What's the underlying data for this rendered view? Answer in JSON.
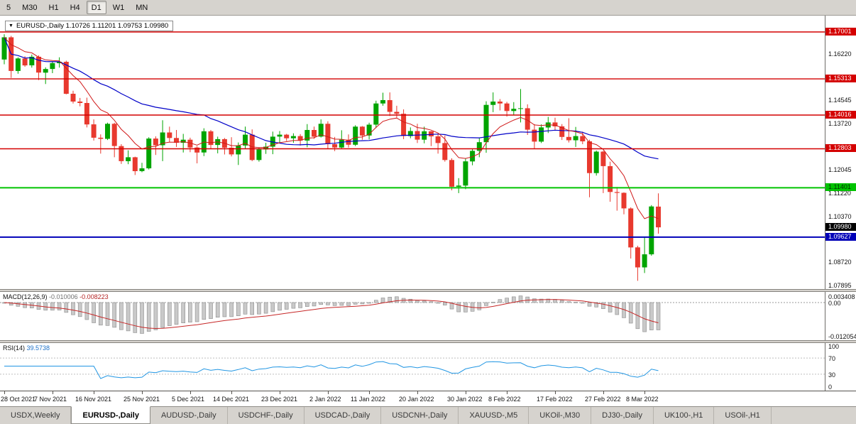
{
  "toolbar": {
    "timeframes": [
      {
        "label": "5",
        "active": false
      },
      {
        "label": "M30",
        "active": false
      },
      {
        "label": "H1",
        "active": false
      },
      {
        "label": "H4",
        "active": false
      },
      {
        "label": "D1",
        "active": true
      },
      {
        "label": "W1",
        "active": false
      },
      {
        "label": "MN",
        "active": false
      }
    ]
  },
  "chart": {
    "title": "EURUSD-,Daily 1.10726 1.11201 1.09753 1.09980",
    "price_lines": [
      {
        "price": 1.17001,
        "label": "1.17001",
        "color": "#d40000",
        "text_color": "#ffffff",
        "width": 1.4
      },
      {
        "price": 1.15313,
        "label": "1.15313",
        "color": "#d40000",
        "text_color": "#ffffff",
        "width": 1.4
      },
      {
        "price": 1.14016,
        "label": "1.14016",
        "color": "#d40000",
        "text_color": "#ffffff",
        "width": 1.4
      },
      {
        "price": 1.12803,
        "label": "1.12803",
        "color": "#d40000",
        "text_color": "#ffffff",
        "width": 1.4
      },
      {
        "price": 1.11401,
        "label": "1.11401",
        "color": "#00c300",
        "text_color": "#003300",
        "width": 2
      },
      {
        "price": 1.09627,
        "label": "1.09627",
        "color": "#0000b8",
        "text_color": "#ffffff",
        "width": 2
      }
    ],
    "bid_tag": {
      "price": 1.0998,
      "label": "1.09980",
      "color": "#000000",
      "text_color": "#ffffff"
    },
    "y_ticks": [
      {
        "price": 1.1622,
        "label": "1.16220"
      },
      {
        "price": 1.14545,
        "label": "1.14545"
      },
      {
        "price": 1.1372,
        "label": "1.13720"
      },
      {
        "price": 1.12045,
        "label": "1.12045"
      },
      {
        "price": 1.1122,
        "label": "1.11220"
      },
      {
        "price": 1.1037,
        "label": "1.10370"
      },
      {
        "price": 1.0872,
        "label": "1.08720"
      },
      {
        "price": 1.07895,
        "label": "1.07895"
      }
    ],
    "x_labels": [
      {
        "text": "28 Oct 2021",
        "index": 0
      },
      {
        "text": "7 Nov 2021",
        "index": 7
      },
      {
        "text": "16 Nov 2021",
        "index": 13
      },
      {
        "text": "25 Nov 2021",
        "index": 20
      },
      {
        "text": "5 Dec 2021",
        "index": 27
      },
      {
        "text": "14 Dec 2021",
        "index": 33
      },
      {
        "text": "23 Dec 2021",
        "index": 40
      },
      {
        "text": "2 Jan 2022",
        "index": 47
      },
      {
        "text": "11 Jan 2022",
        "index": 53
      },
      {
        "text": "20 Jan 2022",
        "index": 60
      },
      {
        "text": "30 Jan 2022",
        "index": 67
      },
      {
        "text": "8 Feb 2022",
        "index": 73
      },
      {
        "text": "17 Feb 2022",
        "index": 80
      },
      {
        "text": "27 Feb 2022",
        "index": 87
      },
      {
        "text": "8 Mar 2022",
        "index": 93
      }
    ],
    "colors": {
      "bull": "#00a400",
      "bear": "#e8392e",
      "ma_fast": "#d01818",
      "ma_slow": "#0000c8"
    }
  },
  "macd": {
    "name": "MACD(12,26,9)",
    "value_main": "-0.010006",
    "value_signal": "-0.008223",
    "axis_labels": [
      "0.003408",
      "0.00",
      "-0.012054"
    ]
  },
  "rsi": {
    "name": "RSI(14)",
    "value": "39.5738",
    "levels": [
      70,
      30
    ],
    "axis_labels": [
      "100",
      "70",
      "30",
      "0"
    ]
  },
  "tabs": [
    {
      "label": "USDX,Weekly",
      "active": false
    },
    {
      "label": "EURUSD-,Daily",
      "active": true
    },
    {
      "label": "AUDUSD-,Daily",
      "active": false
    },
    {
      "label": "USDCHF-,Daily",
      "active": false
    },
    {
      "label": "USDCAD-,Daily",
      "active": false
    },
    {
      "label": "USDCNH-,Daily",
      "active": false
    },
    {
      "label": "XAUUSD-,M5",
      "active": false
    },
    {
      "label": "UKOil-,M30",
      "active": false
    },
    {
      "label": "DJ30-,Daily",
      "active": false
    },
    {
      "label": "UK100-,H1",
      "active": false
    },
    {
      "label": "USOil-,H1",
      "active": false
    }
  ],
  "chart_data": {
    "type": "candlestick",
    "symbol": "EURUSD-",
    "timeframe": "Daily",
    "last_bar": {
      "open": 1.10726,
      "high": 1.11201,
      "low": 1.09753,
      "close": 1.0998
    },
    "horizontal_levels": [
      1.17001,
      1.15313,
      1.14016,
      1.12803,
      1.11401,
      1.09627
    ],
    "indicators": [
      {
        "name": "MACD",
        "params": [
          12,
          26,
          9
        ],
        "current": [
          -0.010006,
          -0.008223
        ]
      },
      {
        "name": "RSI",
        "params": [
          14
        ],
        "current": 39.5738
      }
    ],
    "ohlc": [
      [
        1.1601,
        1.1692,
        1.1584,
        1.1681
      ],
      [
        1.1681,
        1.1686,
        1.1535,
        1.156
      ],
      [
        1.156,
        1.1609,
        1.155,
        1.1605
      ],
      [
        1.1605,
        1.1613,
        1.1575,
        1.158
      ],
      [
        1.158,
        1.1619,
        1.1572,
        1.1611
      ],
      [
        1.1611,
        1.1616,
        1.1527,
        1.1554
      ],
      [
        1.1554,
        1.1573,
        1.1513,
        1.1567
      ],
      [
        1.1567,
        1.1595,
        1.1552,
        1.1588
      ],
      [
        1.1588,
        1.1609,
        1.1572,
        1.1593
      ],
      [
        1.1593,
        1.1597,
        1.1476,
        1.1478
      ],
      [
        1.1478,
        1.1489,
        1.1443,
        1.145
      ],
      [
        1.145,
        1.1463,
        1.1433,
        1.1445
      ],
      [
        1.1445,
        1.1464,
        1.1357,
        1.1368
      ],
      [
        1.1368,
        1.1386,
        1.131,
        1.132
      ],
      [
        1.132,
        1.1332,
        1.1263,
        1.1316
      ],
      [
        1.1316,
        1.1374,
        1.1312,
        1.137
      ],
      [
        1.137,
        1.1374,
        1.125,
        1.129
      ],
      [
        1.129,
        1.1297,
        1.1226,
        1.1236
      ],
      [
        1.1236,
        1.1275,
        1.1225,
        1.125
      ],
      [
        1.125,
        1.1252,
        1.1186,
        1.12
      ],
      [
        1.12,
        1.123,
        1.1196,
        1.121
      ],
      [
        1.121,
        1.1322,
        1.1206,
        1.1317
      ],
      [
        1.1317,
        1.1325,
        1.1258,
        1.1293
      ],
      [
        1.1293,
        1.1383,
        1.1236,
        1.1339
      ],
      [
        1.1339,
        1.136,
        1.1305,
        1.1319
      ],
      [
        1.1319,
        1.1348,
        1.1287,
        1.1302
      ],
      [
        1.1302,
        1.1334,
        1.1267,
        1.1313
      ],
      [
        1.1313,
        1.132,
        1.1268,
        1.1285
      ],
      [
        1.1285,
        1.129,
        1.1228,
        1.1267
      ],
      [
        1.1267,
        1.1354,
        1.1254,
        1.1343
      ],
      [
        1.1343,
        1.1348,
        1.128,
        1.1294
      ],
      [
        1.1294,
        1.1324,
        1.1264,
        1.1315
      ],
      [
        1.1315,
        1.1319,
        1.126,
        1.1284
      ],
      [
        1.1284,
        1.1322,
        1.1253,
        1.126
      ],
      [
        1.126,
        1.1303,
        1.1222,
        1.1292
      ],
      [
        1.1292,
        1.136,
        1.128,
        1.1331
      ],
      [
        1.1331,
        1.135,
        1.1236,
        1.124
      ],
      [
        1.124,
        1.1285,
        1.1234,
        1.1278
      ],
      [
        1.1278,
        1.1302,
        1.1262,
        1.1288
      ],
      [
        1.1288,
        1.1342,
        1.1261,
        1.1324
      ],
      [
        1.1324,
        1.1344,
        1.13,
        1.1331
      ],
      [
        1.1331,
        1.1334,
        1.1308,
        1.1318
      ],
      [
        1.1318,
        1.1336,
        1.1302,
        1.1326
      ],
      [
        1.1326,
        1.1333,
        1.1292,
        1.131
      ],
      [
        1.131,
        1.1369,
        1.1286,
        1.1348
      ],
      [
        1.1348,
        1.136,
        1.1316,
        1.1324
      ],
      [
        1.1324,
        1.1386,
        1.1321,
        1.137
      ],
      [
        1.137,
        1.1379,
        1.1279,
        1.1297
      ],
      [
        1.1297,
        1.1323,
        1.1272,
        1.1285
      ],
      [
        1.1285,
        1.1347,
        1.128,
        1.1313
      ],
      [
        1.1313,
        1.1332,
        1.1285,
        1.1295
      ],
      [
        1.1295,
        1.1365,
        1.129,
        1.136
      ],
      [
        1.136,
        1.1362,
        1.1313,
        1.1328
      ],
      [
        1.1328,
        1.1374,
        1.1314,
        1.1367
      ],
      [
        1.1367,
        1.1453,
        1.1355,
        1.1443
      ],
      [
        1.1443,
        1.1482,
        1.1435,
        1.1455
      ],
      [
        1.1455,
        1.1483,
        1.1398,
        1.1413
      ],
      [
        1.1413,
        1.1435,
        1.1392,
        1.1406
      ],
      [
        1.1406,
        1.1422,
        1.1315,
        1.1326
      ],
      [
        1.1326,
        1.1357,
        1.1318,
        1.1344
      ],
      [
        1.1344,
        1.137,
        1.1301,
        1.1313
      ],
      [
        1.1313,
        1.136,
        1.13,
        1.1343
      ],
      [
        1.1343,
        1.1344,
        1.129,
        1.1325
      ],
      [
        1.1325,
        1.1334,
        1.1263,
        1.1301
      ],
      [
        1.1301,
        1.1328,
        1.1234,
        1.124
      ],
      [
        1.124,
        1.1246,
        1.1131,
        1.1144
      ],
      [
        1.1144,
        1.1175,
        1.1121,
        1.1148
      ],
      [
        1.1148,
        1.1245,
        1.1135,
        1.1235
      ],
      [
        1.1235,
        1.1279,
        1.1221,
        1.1273
      ],
      [
        1.1273,
        1.132,
        1.125,
        1.1304
      ],
      [
        1.1304,
        1.1451,
        1.1266,
        1.1438
      ],
      [
        1.1438,
        1.1483,
        1.1412,
        1.145
      ],
      [
        1.145,
        1.1459,
        1.1418,
        1.1443
      ],
      [
        1.1443,
        1.1449,
        1.1396,
        1.1416
      ],
      [
        1.1416,
        1.1448,
        1.1402,
        1.1424
      ],
      [
        1.1424,
        1.1495,
        1.1375,
        1.1426
      ],
      [
        1.1426,
        1.144,
        1.133,
        1.1349
      ],
      [
        1.1349,
        1.1369,
        1.1279,
        1.1306
      ],
      [
        1.1306,
        1.1368,
        1.1301,
        1.1357
      ],
      [
        1.1357,
        1.1395,
        1.1337,
        1.1375
      ],
      [
        1.1375,
        1.1392,
        1.1345,
        1.1361
      ],
      [
        1.1361,
        1.1369,
        1.1312,
        1.1323
      ],
      [
        1.1323,
        1.139,
        1.1303,
        1.1311
      ],
      [
        1.1311,
        1.1359,
        1.1287,
        1.1326
      ],
      [
        1.1326,
        1.1342,
        1.1297,
        1.1307
      ],
      [
        1.1307,
        1.1313,
        1.1106,
        1.1193
      ],
      [
        1.1193,
        1.1274,
        1.1184,
        1.127
      ],
      [
        1.127,
        1.1273,
        1.1121,
        1.1218
      ],
      [
        1.1218,
        1.1234,
        1.109,
        1.1125
      ],
      [
        1.1125,
        1.1143,
        1.1058,
        1.1122
      ],
      [
        1.1122,
        1.1124,
        1.1045,
        1.1066
      ],
      [
        1.1066,
        1.107,
        1.0886,
        1.0926
      ],
      [
        1.0926,
        1.0932,
        1.0806,
        1.0854
      ],
      [
        1.0854,
        1.0965,
        1.0834,
        1.0901
      ],
      [
        1.0901,
        1.1078,
        1.0896,
        1.1073
      ],
      [
        1.10726,
        1.11201,
        1.09753,
        1.0998
      ]
    ]
  }
}
